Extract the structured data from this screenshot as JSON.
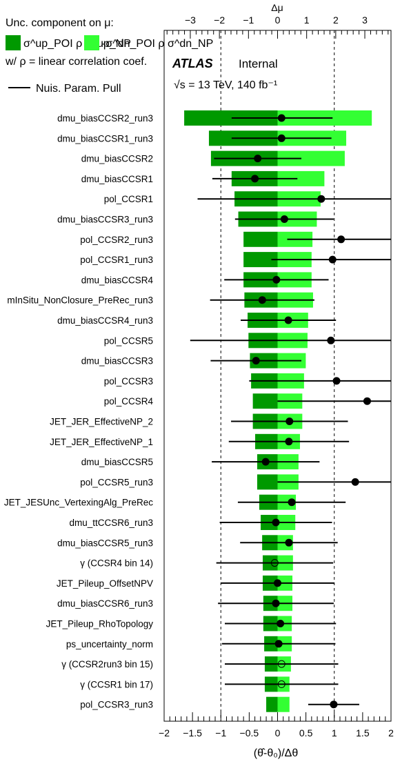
{
  "chart_data": {
    "type": "ranking",
    "title": "",
    "legend": {
      "heading": "Unc. component on  μ:",
      "up_label": "σ^up_POI ρ σ^up_NP",
      "dn_label": "-σ^dn_POI ρ σ^dn_NP",
      "note": "w/  ρ = linear correlation coef.",
      "pull_label": "Nuis. Param. Pull",
      "up_color": "#009900",
      "dn_color": "#33ff33"
    },
    "experiment": {
      "name": "ATLAS",
      "status": "Internal",
      "energy": "√s = 13 TeV, 140 fb⁻¹"
    },
    "bottom_axis": {
      "label": "(θ̂-θ₀)/Δθ",
      "range": [
        -2,
        2
      ],
      "ticks": [
        -2,
        -1.5,
        -1,
        -0.5,
        0,
        0.5,
        1,
        1.5,
        2
      ]
    },
    "top_axis": {
      "label": "Δμ",
      "range": [
        -3.9,
        3.9
      ],
      "ticks": [
        -3,
        -2,
        -1,
        0,
        1,
        2,
        3
      ]
    },
    "reference_lines": [
      -1,
      1
    ],
    "parameters": [
      {
        "name": "dmu_biasCCSR2_run3",
        "up": -3.21,
        "dn": 3.24,
        "pull": 0.07,
        "err_lo": 0.88,
        "err_hi": 0.9,
        "filled": true
      },
      {
        "name": "dmu_biasCCSR1_run3",
        "up": -2.36,
        "dn": 2.36,
        "pull": 0.07,
        "err_lo": 0.88,
        "err_hi": 0.88,
        "filled": true
      },
      {
        "name": "dmu_biasCCSR2",
        "up": -2.29,
        "dn": 2.31,
        "pull": -0.35,
        "err_lo": 0.77,
        "err_hi": 0.77,
        "filled": true
      },
      {
        "name": "dmu_biasCCSR1",
        "up": -1.58,
        "dn": 1.61,
        "pull": -0.4,
        "err_lo": 0.75,
        "err_hi": 0.75,
        "filled": true
      },
      {
        "name": "pol_CCSR1",
        "up": -1.48,
        "dn": 1.48,
        "pull": 0.77,
        "err_lo": 2.18,
        "err_hi": 2.18,
        "filled": true
      },
      {
        "name": "dmu_biasCCSR3_run3",
        "up": -1.35,
        "dn": 1.35,
        "pull": 0.12,
        "err_lo": 0.87,
        "err_hi": 0.87,
        "filled": true
      },
      {
        "name": "pol_CCSR2_run3",
        "up": -1.17,
        "dn": 1.2,
        "pull": 1.12,
        "err_lo": 0.95,
        "err_hi": 0.95,
        "filled": true
      },
      {
        "name": "pol_CCSR1_run3",
        "up": -1.17,
        "dn": 1.17,
        "pull": 0.97,
        "err_lo": 1.08,
        "err_hi": 1.08,
        "filled": true
      },
      {
        "name": "dmu_biasCCSR4",
        "up": -1.17,
        "dn": 1.17,
        "pull": -0.02,
        "err_lo": 0.92,
        "err_hi": 0.92,
        "filled": true
      },
      {
        "name": "mInSitu_NonClosure_PreRec_run3",
        "up": -1.14,
        "dn": 1.22,
        "pull": -0.27,
        "err_lo": 0.92,
        "err_hi": 0.92,
        "filled": true
      },
      {
        "name": "dmu_biasCCSR4_run3",
        "up": -1.03,
        "dn": 1.05,
        "pull": 0.19,
        "err_lo": 0.84,
        "err_hi": 0.84,
        "filled": true
      },
      {
        "name": "pol_CCSR5",
        "up": -1.0,
        "dn": 1.03,
        "pull": 0.94,
        "err_lo": 2.48,
        "err_hi": 2.48,
        "filled": true
      },
      {
        "name": "dmu_biasCCSR3",
        "up": -0.95,
        "dn": 0.97,
        "pull": -0.38,
        "err_lo": 0.8,
        "err_hi": 0.8,
        "filled": true
      },
      {
        "name": "pol_CCSR3",
        "up": -0.91,
        "dn": 0.91,
        "pull": 1.04,
        "err_lo": 1.54,
        "err_hi": 1.54,
        "filled": true
      },
      {
        "name": "pol_CCSR4",
        "up": -0.85,
        "dn": 0.85,
        "pull": 1.58,
        "err_lo": 1.58,
        "err_hi": 1.58,
        "filled": true
      },
      {
        "name": "JET_JER_EffectiveNP_2",
        "up": -0.85,
        "dn": 0.85,
        "pull": 0.21,
        "err_lo": 1.03,
        "err_hi": 1.03,
        "filled": true
      },
      {
        "name": "JET_JER_EffectiveNP_1",
        "up": -0.77,
        "dn": 0.77,
        "pull": 0.2,
        "err_lo": 1.06,
        "err_hi": 1.06,
        "filled": true
      },
      {
        "name": "dmu_biasCCSR5",
        "up": -0.7,
        "dn": 0.72,
        "pull": -0.21,
        "err_lo": 0.95,
        "err_hi": 0.95,
        "filled": true
      },
      {
        "name": "pol_CCSR5_run3",
        "up": -0.7,
        "dn": 0.72,
        "pull": 1.37,
        "err_lo": 1.37,
        "err_hi": 1.37,
        "filled": true
      },
      {
        "name": "JET_JESUnc_VertexingAlg_PreRec",
        "up": -0.63,
        "dn": 0.63,
        "pull": 0.25,
        "err_lo": 0.95,
        "err_hi": 0.95,
        "filled": true
      },
      {
        "name": "dmu_ttCCSR6_run3",
        "up": -0.58,
        "dn": 0.61,
        "pull": -0.03,
        "err_lo": 0.99,
        "err_hi": 0.99,
        "filled": true
      },
      {
        "name": "dmu_biasCCSR5_run3",
        "up": -0.53,
        "dn": 0.53,
        "pull": 0.2,
        "err_lo": 0.86,
        "err_hi": 0.86,
        "filled": true
      },
      {
        "name": "γ (CCSR4 bin 14)",
        "up": -0.51,
        "dn": 0.53,
        "pull": -0.05,
        "err_lo": 1.03,
        "err_hi": 1.03,
        "filled": false
      },
      {
        "name": "JET_Pileup_OffsetNPV",
        "up": -0.51,
        "dn": 0.51,
        "pull": 0.0,
        "err_lo": 1.0,
        "err_hi": 1.0,
        "filled": true
      },
      {
        "name": "dmu_biasCCSR6_run3",
        "up": -0.49,
        "dn": 0.51,
        "pull": -0.03,
        "err_lo": 1.02,
        "err_hi": 1.02,
        "filled": true
      },
      {
        "name": "JET_Pileup_RhoTopology",
        "up": -0.49,
        "dn": 0.49,
        "pull": 0.05,
        "err_lo": 0.98,
        "err_hi": 0.98,
        "filled": true
      },
      {
        "name": "ps_uncertainty_norm",
        "up": -0.46,
        "dn": 0.49,
        "pull": 0.02,
        "err_lo": 1.0,
        "err_hi": 1.0,
        "filled": true
      },
      {
        "name": "γ (CCSR2run3 bin 15)",
        "up": -0.44,
        "dn": 0.46,
        "pull": 0.07,
        "err_lo": 1.0,
        "err_hi": 1.0,
        "filled": false
      },
      {
        "name": "γ (CCSR1 bin 17)",
        "up": -0.44,
        "dn": 0.41,
        "pull": 0.07,
        "err_lo": 1.0,
        "err_hi": 1.0,
        "filled": false
      },
      {
        "name": "pol_CCSR3_run3",
        "up": -0.39,
        "dn": 0.41,
        "pull": 0.99,
        "err_lo": 0.45,
        "err_hi": 0.45,
        "filled": true
      }
    ]
  }
}
